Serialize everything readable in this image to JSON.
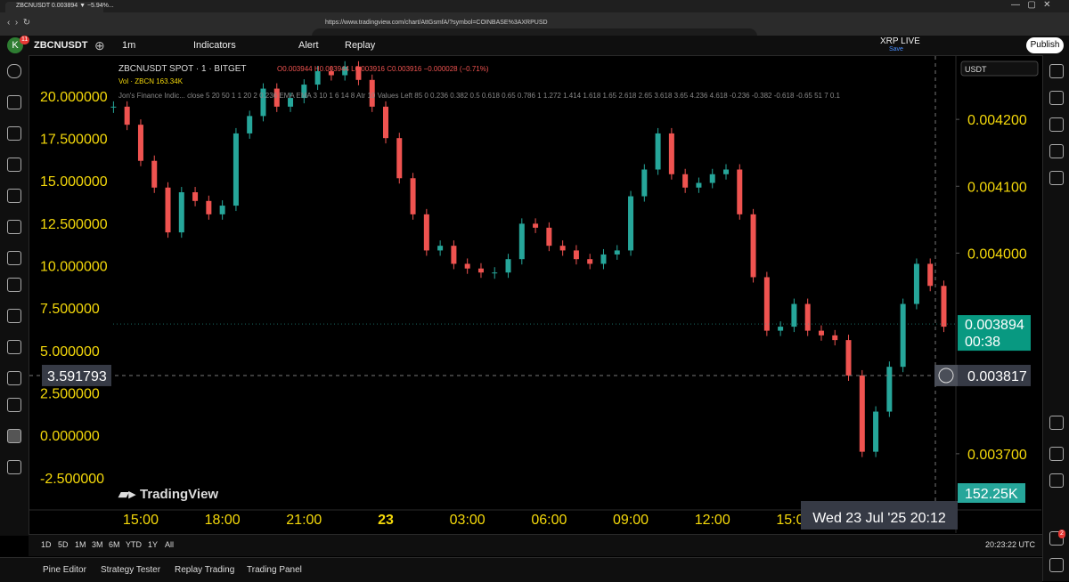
{
  "browser": {
    "tab_title": "ZBCNUSDT 0.003894 ▼ −5.94%...",
    "url": "https://www.tradingview.com/chart/AttGsmfA/?symbol=COINBASE%3AXRPUSD"
  },
  "toolbar": {
    "avatar": "K",
    "badge": "11",
    "symbol": "ZBCNUSDT",
    "interval": "1m",
    "indicators": "Indicators",
    "alert": "Alert",
    "replay": "Replay",
    "layout_name": "XRP LIVE",
    "save": "Save",
    "publish": "Publish"
  },
  "chart_data": {
    "type": "line",
    "legend_symbol": "ZBCNUSDT SPOT · 1 · BITGET",
    "legend_ohlc": "O0.003944 H0.003944 L0.003916 C0.003916 −0.000028 (−0.71%)",
    "legend_volume": "Vol · ZBCN 163.34K",
    "legend_indicator": "Jon's Finance Indic... close 5 20 50 1 1 20 2 0.236 EMA EMA 3 10 1 6 14 8 Atr 10 Values Left 85 0 0.236 0.382 0.5 0.618 0.65 0.786 1 1.272 1.414 1.618 1.65 2.618 2.65 3.618 3.65 4.236 4.618 -0.236 -0.382 -0.618 -0.65 51 7 0.1",
    "currency": "USDT",
    "watermark": "TradingView",
    "categories": [
      null,
      null,
      "15:00",
      null,
      null,
      null,
      null,
      null,
      "18:00",
      null,
      null,
      null,
      null,
      null,
      "21:00",
      null,
      null,
      null,
      null,
      null,
      "23",
      null,
      null,
      null,
      null,
      null,
      "03:00",
      null,
      null,
      null,
      null,
      null,
      "06:00",
      null,
      null,
      null,
      null,
      null,
      "09:00",
      null,
      null,
      null,
      null,
      null,
      "12:00",
      null,
      null,
      null,
      null,
      null,
      "15:00",
      null,
      null,
      null,
      null,
      null,
      null,
      null,
      null,
      null,
      null,
      null
    ],
    "values": [
      0.004219,
      0.004192,
      0.004138,
      0.004098,
      0.004031,
      0.004091,
      0.004078,
      0.004058,
      0.004071,
      0.004179,
      0.004205,
      0.004246,
      0.004219,
      0.004232,
      0.004252,
      0.004272,
      0.004266,
      0.004279,
      0.004259,
      0.004219,
      0.004172,
      0.004112,
      0.004058,
      0.004004,
      0.004011,
      0.003984,
      0.003977,
      0.003971,
      0.003971,
      0.003991,
      0.004044,
      0.004038,
      0.004011,
      0.004004,
      0.003991,
      0.003984,
      0.003998,
      0.004004,
      0.004085,
      0.004125,
      0.004179,
      0.004118,
      0.004098,
      0.004105,
      0.004118,
      0.004125,
      0.004058,
      0.003964,
      0.003884,
      0.00389,
      0.003924,
      0.003884,
      0.003877,
      0.00387,
      0.003817,
      0.003703,
      0.003763,
      0.00383,
      0.003924,
      0.003984,
      0.003951,
      0.00389
    ],
    "up_color": "#26a69a",
    "down_color": "#ef5350",
    "ylim": [
      0.003616,
      0.004292
    ],
    "yticks": [
      {
        "value": 0.0042,
        "label": "0.004200"
      },
      {
        "value": 0.0041,
        "label": "0.004100"
      },
      {
        "value": 0.004,
        "label": "0.004000"
      },
      {
        "value": 0.0037,
        "label": "0.003700"
      }
    ],
    "left_axis": {
      "ylim": [
        -4.398,
        22.243
      ],
      "ticks": [
        {
          "value": 20,
          "label": "20.000000"
        },
        {
          "value": 17.5,
          "label": "17.500000"
        },
        {
          "value": 15,
          "label": "15.000000"
        },
        {
          "value": 12.5,
          "label": "12.500000"
        },
        {
          "value": 10,
          "label": "10.000000"
        },
        {
          "value": 7.5,
          "label": "7.500000"
        },
        {
          "value": 5,
          "label": "5.000000"
        },
        {
          "value": 2.5,
          "label": "2.500000"
        },
        {
          "value": 0,
          "label": "0.000000"
        },
        {
          "value": -2.5,
          "label": "-2.500000"
        }
      ]
    },
    "last_price": {
      "value": 0.003894,
      "label": "0.003894"
    },
    "countdown": "00:38",
    "crosshair_price": {
      "value": 0.003817,
      "label": "0.003817"
    },
    "crosshair_left": {
      "value": 3.591793,
      "label": "3.591793"
    },
    "volume_label": "152.25K",
    "crosshair_time": "Wed 23 Jul '25   20:12"
  },
  "bottom_bar": {
    "ranges": [
      "1D",
      "5D",
      "1M",
      "3M",
      "6M",
      "YTD",
      "1Y",
      "All"
    ],
    "clock": "20:23:22 UTC"
  },
  "footer": {
    "tabs": [
      "Pine Editor",
      "Strategy Tester",
      "Replay Trading",
      "Trading Panel"
    ],
    "notification_badge": "2"
  }
}
